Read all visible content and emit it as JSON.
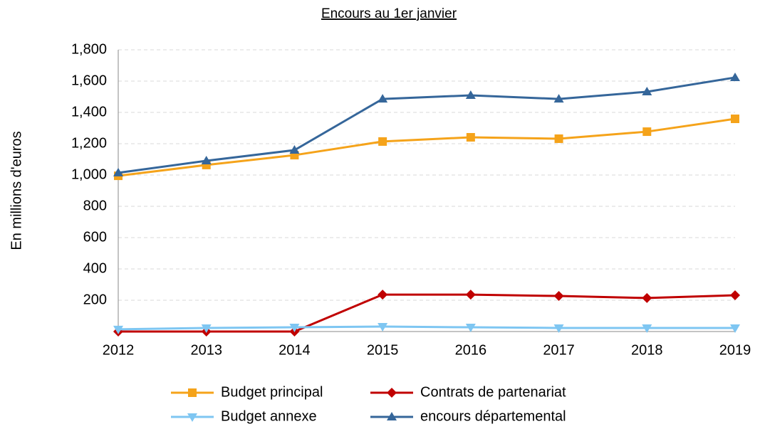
{
  "chart_data": {
    "type": "line",
    "title": "Encours au 1er janvier",
    "y_label": "En millions d'euros",
    "categories": [
      "2012",
      "2013",
      "2014",
      "2015",
      "2016",
      "2017",
      "2018",
      "2019"
    ],
    "series": [
      {
        "name": "Budget principal",
        "color": "#f5a31a",
        "marker": "square",
        "values": [
          995,
          1064,
          1127,
          1214,
          1241,
          1232,
          1277,
          1359
        ]
      },
      {
        "name": "Contrats de partenariat",
        "color": "#c00000",
        "marker": "diamond",
        "values": [
          0,
          0,
          0,
          236,
          236,
          227,
          214,
          232
        ]
      },
      {
        "name": "Budget annexe",
        "color": "#7ec6f2",
        "marker": "triangle-down",
        "values": [
          14,
          23,
          27,
          32,
          27,
          23,
          23,
          23
        ]
      },
      {
        "name": "encours départemental",
        "color": "#35669a",
        "marker": "triangle-up",
        "values": [
          1014,
          1091,
          1159,
          1486,
          1509,
          1486,
          1532,
          1623
        ]
      }
    ],
    "ylim": [
      0,
      1800
    ],
    "yticks": [
      200,
      400,
      600,
      800,
      {
        "value": 1000,
        "label": "1,000"
      },
      {
        "value": 1200,
        "label": "1,200"
      },
      {
        "value": 1400,
        "label": "1,400"
      },
      {
        "value": 1600,
        "label": "1,600"
      },
      {
        "value": 1800,
        "label": "1,800"
      }
    ],
    "grid": true
  }
}
